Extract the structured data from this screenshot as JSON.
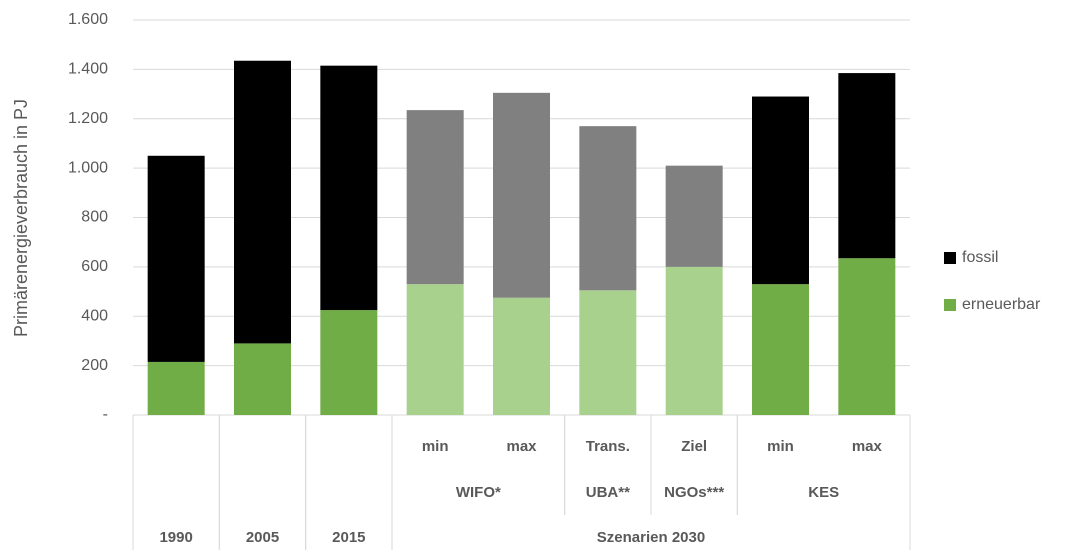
{
  "chart_data": {
    "type": "stacked-bar",
    "y_axis_label": "Primärenergieverbrauch in PJ",
    "category_tree": [
      {
        "label": "1990"
      },
      {
        "label": "2005"
      },
      {
        "label": "2015"
      },
      {
        "label": "Szenarien 2030",
        "children": [
          {
            "label": "WIFO*",
            "children": [
              {
                "label": "min"
              },
              {
                "label": "max"
              }
            ]
          },
          {
            "label": "UBA**",
            "children": [
              {
                "label": "Trans."
              }
            ]
          },
          {
            "label": "NGOs***",
            "children": [
              {
                "label": "Ziel"
              }
            ]
          },
          {
            "label": "KES",
            "children": [
              {
                "label": "min"
              },
              {
                "label": "max"
              }
            ]
          }
        ]
      }
    ],
    "series": [
      {
        "name": "erneuerbar",
        "color": "#70ad47",
        "colors": [
          "#70ad47",
          "#70ad47",
          "#70ad47",
          "#a9d18e",
          "#a9d18e",
          "#a9d18e",
          "#a9d18e",
          "#70ad47",
          "#70ad47"
        ],
        "values": [
          215,
          290,
          425,
          530,
          475,
          505,
          600,
          530,
          635
        ]
      },
      {
        "name": "fossil",
        "color": "#000000",
        "colors": [
          "#000000",
          "#000000",
          "#000000",
          "#808080",
          "#808080",
          "#808080",
          "#808080",
          "#000000",
          "#000000"
        ],
        "values": [
          835,
          1145,
          990,
          705,
          830,
          665,
          410,
          760,
          750
        ]
      }
    ],
    "ylim": [
      0,
      1600
    ],
    "yticks": [
      {
        "value": 0,
        "label": "-"
      },
      200,
      400,
      600,
      800,
      {
        "value": 1000,
        "label": "1.000"
      },
      {
        "value": 1200,
        "label": "1.200"
      },
      {
        "value": 1400,
        "label": "1.400"
      },
      {
        "value": 1600,
        "label": "1.600"
      }
    ],
    "grid": true,
    "legend": "right"
  }
}
